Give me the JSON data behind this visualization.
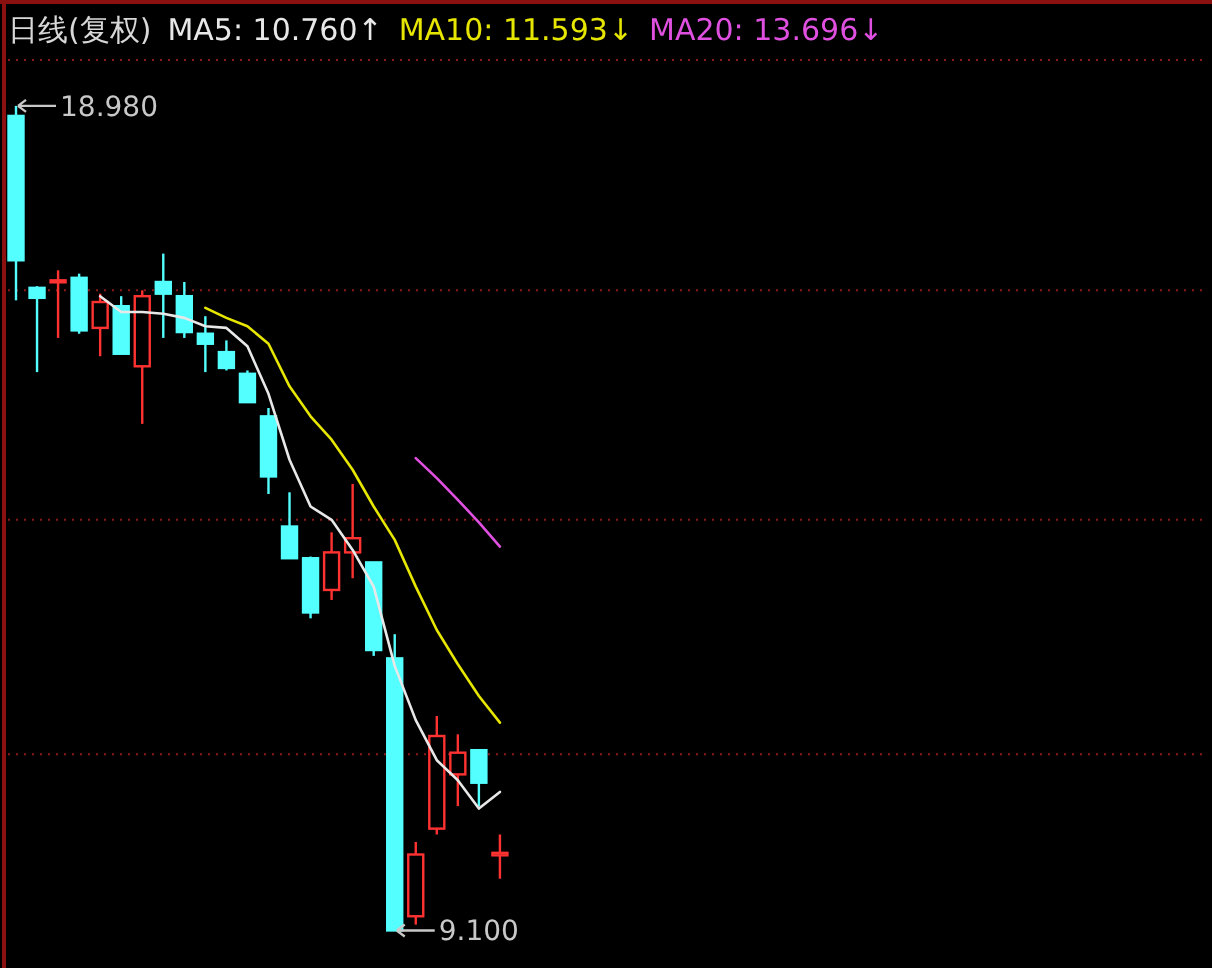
{
  "chart_data": {
    "type": "candlestick",
    "title": "日线(复权)",
    "categories": [
      null,
      null,
      null,
      null,
      null,
      null,
      null,
      null,
      null,
      null,
      null,
      null,
      null,
      null,
      null,
      null,
      null,
      null,
      null,
      null,
      null,
      null,
      null,
      null
    ],
    "ohlc": [
      [
        18.86,
        18.98,
        16.65,
        17.13
      ],
      [
        16.8,
        16.82,
        15.79,
        16.68
      ],
      [
        16.87,
        17.01,
        16.2,
        16.89
      ],
      [
        16.92,
        16.97,
        16.25,
        16.29
      ],
      [
        16.32,
        16.73,
        15.98,
        16.63
      ],
      [
        16.58,
        16.7,
        16.01,
        16.01
      ],
      [
        15.86,
        16.77,
        15.17,
        16.7
      ],
      [
        16.87,
        17.21,
        16.2,
        16.73
      ],
      [
        16.7,
        16.87,
        16.2,
        16.27
      ],
      [
        16.25,
        16.46,
        15.79,
        16.13
      ],
      [
        16.03,
        16.17,
        15.81,
        15.84
      ],
      [
        15.77,
        15.81,
        15.43,
        15.43
      ],
      [
        15.26,
        15.36,
        14.33,
        14.54
      ],
      [
        13.94,
        14.35,
        13.56,
        13.56
      ],
      [
        13.56,
        13.58,
        12.84,
        12.91
      ],
      [
        13.18,
        13.87,
        13.06,
        13.63
      ],
      [
        13.63,
        14.45,
        13.32,
        13.8
      ],
      [
        13.51,
        13.51,
        12.39,
        12.46
      ],
      [
        12.36,
        12.65,
        9.1,
        9.1
      ],
      [
        9.27,
        10.16,
        9.17,
        10.01
      ],
      [
        10.32,
        11.67,
        10.25,
        11.43
      ],
      [
        10.97,
        11.45,
        10.59,
        11.23
      ],
      [
        11.26,
        11.26,
        10.59,
        10.87
      ],
      [
        10.0,
        10.25,
        9.72,
        10.03
      ]
    ],
    "colors": [
      "#54ffff",
      "#54ffff",
      "#ff3232",
      "#54ffff",
      "#ff3232",
      "#54ffff",
      "#ff3232",
      "#54ffff",
      "#54ffff",
      "#54ffff",
      "#54ffff",
      "#54ffff",
      "#54ffff",
      "#54ffff",
      "#54ffff",
      "#ff3232",
      "#ff3232",
      "#54ffff",
      "#54ffff",
      "#ff3232",
      "#ff3232",
      "#ff3232",
      "#54ffff",
      "#ff3232"
    ],
    "series": [
      {
        "name": "MA5: 10.760↑",
        "type": "line",
        "color": "#e8e8e8",
        "values": [
          null,
          null,
          null,
          null,
          16.7,
          16.51,
          16.51,
          16.49,
          16.44,
          16.34,
          16.32,
          16.1,
          15.53,
          14.74,
          14.18,
          14.02,
          13.66,
          13.22,
          12.27,
          11.62,
          11.14,
          10.9,
          10.56,
          10.76
        ]
      },
      {
        "name": "MA10: 11.593↓",
        "type": "line",
        "color": "#e6e600",
        "values": [
          null,
          null,
          null,
          null,
          null,
          null,
          null,
          null,
          null,
          16.56,
          16.44,
          16.34,
          16.13,
          15.62,
          15.26,
          14.98,
          14.62,
          14.18,
          13.78,
          13.22,
          12.7,
          12.29,
          11.91,
          11.59
        ]
      },
      {
        "name": "MA20: 13.696↓",
        "type": "line",
        "color": "#e050e0",
        "values": [
          null,
          null,
          null,
          null,
          null,
          null,
          null,
          null,
          null,
          null,
          null,
          null,
          null,
          null,
          null,
          null,
          null,
          null,
          null,
          14.76,
          14.52,
          14.26,
          13.99,
          13.7
        ]
      }
    ],
    "ylim": [
      8.65,
      19.53
    ],
    "yticks": [
      {
        "value": 19.53,
        "label": null
      },
      {
        "value": 16.77,
        "label": null
      },
      {
        "value": 14.02,
        "label": null
      },
      {
        "value": 11.21,
        "label": null
      }
    ],
    "grid": "y",
    "legend": "top",
    "annotations": [
      "18.980",
      "9.100"
    ]
  }
}
